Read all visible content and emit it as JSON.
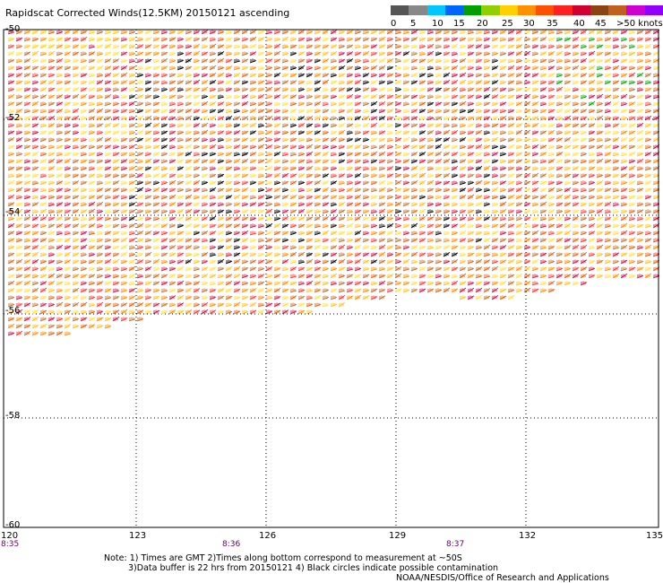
{
  "title": "Rapidscat Corrected Winds(12.5KM) 20150121 ascending",
  "legend": {
    "colors": [
      "#555555",
      "#888888",
      "#00c8ff",
      "#0064ff",
      "#00a000",
      "#90d000",
      "#ffd000",
      "#ff9000",
      "#ff5000",
      "#ff2020",
      "#d00030",
      "#8b4513",
      "#c06020",
      "#d000d0",
      "#9000ff"
    ],
    "labels": [
      "0",
      "5",
      "10",
      "15",
      "20",
      "25",
      "30",
      "35",
      "40",
      "45",
      ">50 knots"
    ]
  },
  "lat_labels": [
    "-50",
    "-52",
    "-54",
    "-56",
    "-58",
    "-60"
  ],
  "lon_labels": [
    "120",
    "123",
    "126",
    "129",
    "132",
    "135"
  ],
  "time_labels": [
    "8:35",
    "8:36",
    "8:37"
  ],
  "notes": [
    "Note: 1) Times are GMT 2)Times along bottom correspond to measurement at ~50S",
    "3)Data buffer is 22 hrs from 20150121 4) Black circles indicate possible contamination",
    "NOAA/NESDIS/Office of Research and Applications"
  ]
}
